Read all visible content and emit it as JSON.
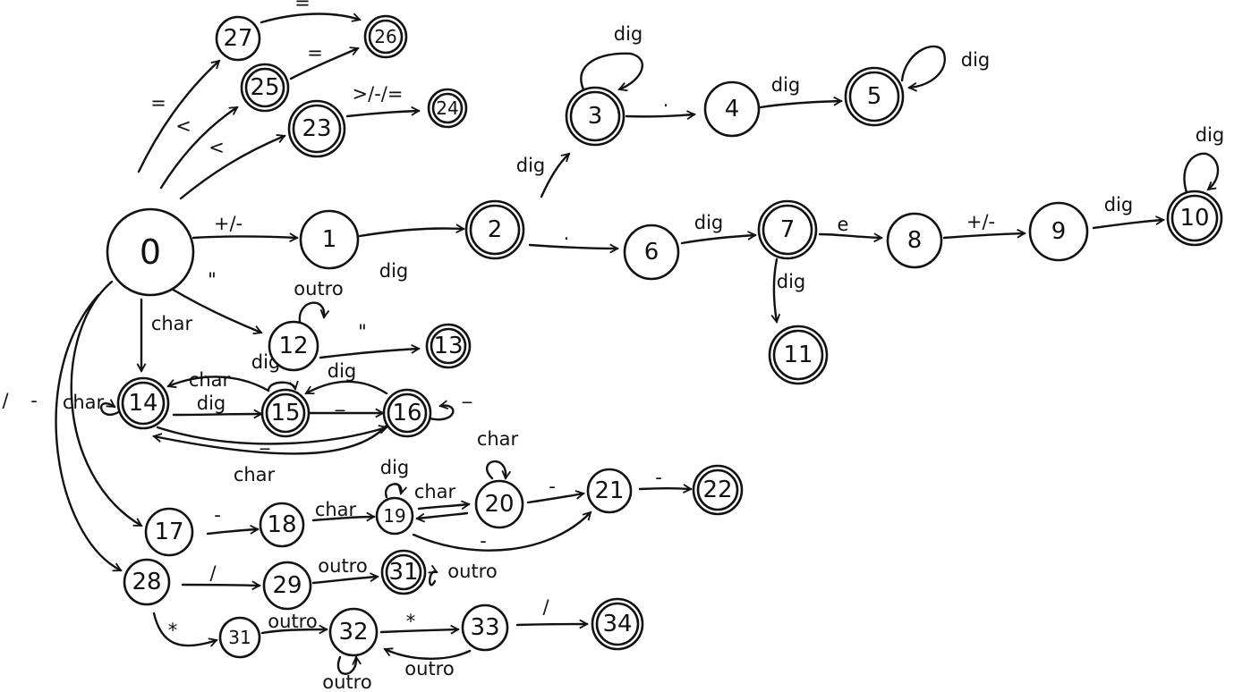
{
  "states": [
    {
      "id": "0",
      "label": "0",
      "final": false
    },
    {
      "id": "1",
      "label": "1",
      "final": false
    },
    {
      "id": "2",
      "label": "2",
      "final": true
    },
    {
      "id": "3",
      "label": "3",
      "final": true
    },
    {
      "id": "4",
      "label": "4",
      "final": false
    },
    {
      "id": "5",
      "label": "5",
      "final": true
    },
    {
      "id": "6",
      "label": "6",
      "final": false
    },
    {
      "id": "7",
      "label": "7",
      "final": true
    },
    {
      "id": "8",
      "label": "8",
      "final": false
    },
    {
      "id": "9",
      "label": "9",
      "final": false
    },
    {
      "id": "10",
      "label": "10",
      "final": true
    },
    {
      "id": "11",
      "label": "11",
      "final": true
    },
    {
      "id": "12",
      "label": "12",
      "final": false
    },
    {
      "id": "13",
      "label": "13",
      "final": true
    },
    {
      "id": "14",
      "label": "14",
      "final": true
    },
    {
      "id": "15",
      "label": "15",
      "final": true
    },
    {
      "id": "16",
      "label": "16",
      "final": true
    },
    {
      "id": "17",
      "label": "17",
      "final": false
    },
    {
      "id": "18",
      "label": "18",
      "final": false
    },
    {
      "id": "19",
      "label": "19",
      "final": false
    },
    {
      "id": "20",
      "label": "20",
      "final": false
    },
    {
      "id": "21",
      "label": "21",
      "final": false
    },
    {
      "id": "22",
      "label": "22",
      "final": true
    },
    {
      "id": "23",
      "label": "23",
      "final": true
    },
    {
      "id": "24",
      "label": "24",
      "final": true
    },
    {
      "id": "25",
      "label": "25",
      "final": true
    },
    {
      "id": "26",
      "label": "26",
      "final": true
    },
    {
      "id": "27",
      "label": "27",
      "final": false
    },
    {
      "id": "28",
      "label": "28",
      "final": false
    },
    {
      "id": "29",
      "label": "29",
      "final": false
    },
    {
      "id": "31a",
      "label": "31",
      "final": true
    },
    {
      "id": "31b",
      "label": "31",
      "final": false
    },
    {
      "id": "32",
      "label": "32",
      "final": false
    },
    {
      "id": "33",
      "label": "33",
      "final": false
    },
    {
      "id": "34",
      "label": "34",
      "final": true
    }
  ],
  "transitions": [
    {
      "from": "0",
      "to": "1",
      "label": "+/-"
    },
    {
      "from": "1",
      "to": "2",
      "label": "dig"
    },
    {
      "from": "2",
      "to": "3",
      "label": "dig"
    },
    {
      "from": "3",
      "to": "3",
      "label": "dig"
    },
    {
      "from": "3",
      "to": "4",
      "label": "."
    },
    {
      "from": "4",
      "to": "5",
      "label": "dig"
    },
    {
      "from": "5",
      "to": "5",
      "label": "dig"
    },
    {
      "from": "2",
      "to": "6",
      "label": "."
    },
    {
      "from": "6",
      "to": "7",
      "label": "dig"
    },
    {
      "from": "7",
      "to": "8",
      "label": "e"
    },
    {
      "from": "8",
      "to": "9",
      "label": "+/-"
    },
    {
      "from": "9",
      "to": "10",
      "label": "dig"
    },
    {
      "from": "10",
      "to": "10",
      "label": "dig"
    },
    {
      "from": "7",
      "to": "11",
      "label": "dig"
    },
    {
      "from": "0",
      "to": "27",
      "label": "="
    },
    {
      "from": "27",
      "to": "26",
      "label": "="
    },
    {
      "from": "0",
      "to": "25",
      "label": "<"
    },
    {
      "from": "25",
      "to": "26",
      "label": "="
    },
    {
      "from": "0",
      "to": "23",
      "label": "<"
    },
    {
      "from": "23",
      "to": "24",
      "label": ">/-/="
    },
    {
      "from": "0",
      "to": "12",
      "label": "\""
    },
    {
      "from": "12",
      "to": "12",
      "label": "outro"
    },
    {
      "from": "12",
      "to": "13",
      "label": "\""
    },
    {
      "from": "0",
      "to": "14",
      "label": "char"
    },
    {
      "from": "14",
      "to": "14",
      "label": "char"
    },
    {
      "from": "14",
      "to": "15",
      "label": "dig"
    },
    {
      "from": "15",
      "to": "14",
      "label": "char"
    },
    {
      "from": "15",
      "to": "15",
      "label": "dig"
    },
    {
      "from": "15",
      "to": "16",
      "label": "_"
    },
    {
      "from": "16",
      "to": "15",
      "label": "dig"
    },
    {
      "from": "16",
      "to": "16",
      "label": "_"
    },
    {
      "from": "14",
      "to": "16",
      "label": "_"
    },
    {
      "from": "16",
      "to": "14",
      "label": "char"
    },
    {
      "from": "0",
      "to": "17",
      "label": "-"
    },
    {
      "from": "17",
      "to": "18",
      "label": "-"
    },
    {
      "from": "18",
      "to": "19",
      "label": "char"
    },
    {
      "from": "19",
      "to": "19",
      "label": "dig"
    },
    {
      "from": "19",
      "to": "20",
      "label": "char"
    },
    {
      "from": "20",
      "to": "19",
      "label": ""
    },
    {
      "from": "20",
      "to": "20",
      "label": "char"
    },
    {
      "from": "20",
      "to": "21",
      "label": "-"
    },
    {
      "from": "19",
      "to": "21",
      "label": "-"
    },
    {
      "from": "21",
      "to": "22",
      "label": "-"
    },
    {
      "from": "0",
      "to": "28",
      "label": "/"
    },
    {
      "from": "28",
      "to": "29",
      "label": "/"
    },
    {
      "from": "29",
      "to": "31a",
      "label": "outro"
    },
    {
      "from": "31a",
      "to": "31a",
      "label": "outro"
    },
    {
      "from": "28",
      "to": "31b",
      "label": "*"
    },
    {
      "from": "31b",
      "to": "32",
      "label": "outro"
    },
    {
      "from": "32",
      "to": "32",
      "label": "outro"
    },
    {
      "from": "32",
      "to": "33",
      "label": "*"
    },
    {
      "from": "33",
      "to": "32",
      "label": "outro"
    },
    {
      "from": "33",
      "to": "34",
      "label": "/"
    }
  ]
}
